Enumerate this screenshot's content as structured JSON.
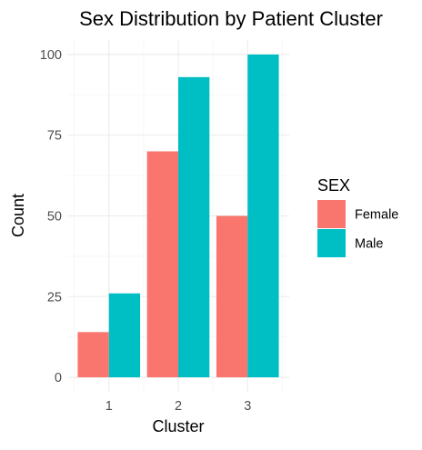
{
  "chart_data": {
    "type": "bar",
    "title": "Sex Distribution by Patient Cluster",
    "xlabel": "Cluster",
    "ylabel": "Count",
    "categories": [
      "1",
      "2",
      "3"
    ],
    "series": [
      {
        "name": "Female",
        "values": [
          14,
          70,
          50
        ],
        "color": "#F8766D"
      },
      {
        "name": "Male",
        "values": [
          26,
          93,
          100
        ],
        "color": "#00BFC4"
      }
    ],
    "ylim": [
      -4.5,
      104.5
    ],
    "yticks": [
      0,
      25,
      50,
      75,
      100
    ],
    "legend": {
      "title": "SEX",
      "position": "right"
    },
    "grid": true,
    "colors": {
      "grid_major": "#EBEBEB",
      "grid_minor": "#F5F5F5",
      "text": "#000000",
      "tick_text": "#4D4D4D"
    }
  }
}
